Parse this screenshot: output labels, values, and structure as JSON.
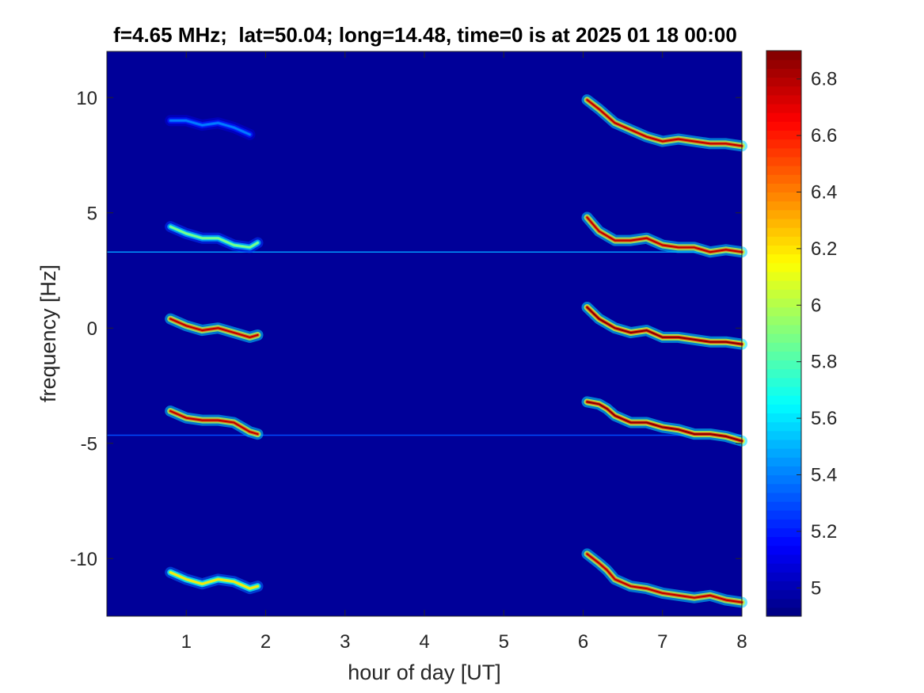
{
  "chart_data": {
    "type": "heatmap",
    "title": "f=4.65 MHz;  lat=50.04; long=14.48, time=0 is at 2025 01 18 00:00",
    "xlabel": "hour of day [UT]",
    "ylabel": "frequency [Hz]",
    "xlim": [
      0,
      8
    ],
    "ylim": [
      -12.5,
      12.0
    ],
    "x_ticks": [
      1,
      2,
      3,
      4,
      5,
      6,
      7,
      8
    ],
    "y_ticks": [
      -10,
      -5,
      0,
      5,
      10
    ],
    "colormap": "jet",
    "clim": [
      4.9,
      6.9
    ],
    "colorbar_ticks": [
      5,
      5.2,
      5.4,
      5.6,
      5.8,
      6,
      6.2,
      6.4,
      6.6,
      6.8
    ],
    "background_value": 4.95,
    "horizontal_lines": [
      {
        "y": 3.3,
        "value": 5.45
      },
      {
        "y": -4.65,
        "value": 5.3
      }
    ],
    "traces": [
      {
        "x": [
          0.8,
          1.0,
          1.2,
          1.4,
          1.6,
          1.8,
          1.9
        ],
        "y": [
          4.4,
          4.1,
          3.9,
          3.9,
          3.6,
          3.5,
          3.7
        ],
        "peak": 5.9
      },
      {
        "x": [
          0.8,
          1.0,
          1.2,
          1.4,
          1.6,
          1.8,
          1.9
        ],
        "y": [
          0.4,
          0.1,
          -0.1,
          0.0,
          -0.2,
          -0.4,
          -0.3
        ],
        "peak": 6.8
      },
      {
        "x": [
          0.8,
          1.0,
          1.2,
          1.4,
          1.6,
          1.8,
          1.9
        ],
        "y": [
          -3.6,
          -3.9,
          -4.0,
          -4.0,
          -4.1,
          -4.5,
          -4.6
        ],
        "peak": 6.8
      },
      {
        "x": [
          0.8,
          1.0,
          1.2,
          1.4,
          1.6,
          1.8,
          1.9
        ],
        "y": [
          -10.6,
          -10.9,
          -11.1,
          -10.9,
          -11.0,
          -11.3,
          -11.2
        ],
        "peak": 6.2
      },
      {
        "x": [
          0.8,
          1.0,
          1.2,
          1.4,
          1.6,
          1.8
        ],
        "y": [
          9.0,
          9.0,
          8.8,
          8.9,
          8.7,
          8.4
        ],
        "peak": 5.4
      },
      {
        "x": [
          6.05,
          6.2,
          6.3,
          6.4,
          6.6,
          6.8,
          7.0,
          7.2,
          7.4,
          7.6,
          7.8,
          8.0
        ],
        "y": [
          9.9,
          9.5,
          9.2,
          8.9,
          8.6,
          8.3,
          8.1,
          8.2,
          8.1,
          8.0,
          8.0,
          7.9
        ],
        "peak": 6.8
      },
      {
        "x": [
          6.05,
          6.2,
          6.3,
          6.4,
          6.6,
          6.8,
          7.0,
          7.2,
          7.4,
          7.6,
          7.8,
          8.0
        ],
        "y": [
          4.8,
          4.2,
          4.0,
          3.8,
          3.8,
          3.9,
          3.6,
          3.5,
          3.5,
          3.3,
          3.4,
          3.3
        ],
        "peak": 6.8
      },
      {
        "x": [
          6.05,
          6.2,
          6.3,
          6.4,
          6.6,
          6.8,
          7.0,
          7.2,
          7.4,
          7.6,
          7.8,
          8.0
        ],
        "y": [
          0.9,
          0.4,
          0.2,
          0.0,
          -0.2,
          -0.1,
          -0.4,
          -0.4,
          -0.5,
          -0.6,
          -0.6,
          -0.7
        ],
        "peak": 6.9
      },
      {
        "x": [
          6.05,
          6.2,
          6.3,
          6.4,
          6.6,
          6.8,
          7.0,
          7.2,
          7.4,
          7.6,
          7.8,
          8.0
        ],
        "y": [
          -3.2,
          -3.3,
          -3.5,
          -3.8,
          -4.1,
          -4.1,
          -4.3,
          -4.4,
          -4.6,
          -4.6,
          -4.7,
          -4.9
        ],
        "peak": 6.9
      },
      {
        "x": [
          6.05,
          6.2,
          6.3,
          6.4,
          6.6,
          6.8,
          7.0,
          7.2,
          7.4,
          7.6,
          7.8,
          8.0
        ],
        "y": [
          -9.8,
          -10.2,
          -10.5,
          -10.9,
          -11.2,
          -11.3,
          -11.5,
          -11.6,
          -11.7,
          -11.6,
          -11.8,
          -11.9
        ],
        "peak": 6.8
      }
    ]
  }
}
